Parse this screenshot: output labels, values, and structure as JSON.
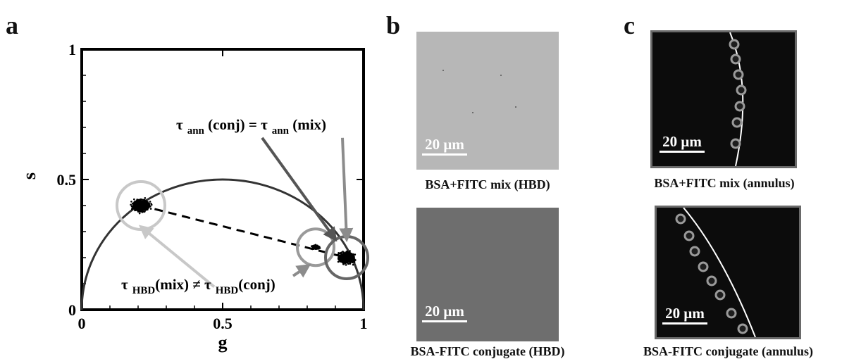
{
  "panels": {
    "a": "a",
    "b": "b",
    "c": "c"
  },
  "chart_data": {
    "type": "scatter",
    "xlabel": "g",
    "ylabel": "s",
    "xlim": [
      0,
      1
    ],
    "ylim": [
      0,
      1
    ],
    "x_ticks": [
      "0",
      "0.5",
      "1"
    ],
    "y_ticks": [
      "0",
      "0.5",
      "1"
    ],
    "semicircle": {
      "center_g": 0.5,
      "radius": 0.5
    },
    "clusters": [
      {
        "name": "HBD mix",
        "g": 0.21,
        "s": 0.4,
        "ring_color": "#c8c8c8"
      },
      {
        "name": "HBD conj",
        "g": 0.83,
        "s": 0.24,
        "ring_color": "#9a9a9a"
      },
      {
        "name": "annulus",
        "g": 0.94,
        "s": 0.2,
        "ring_color": "#666666"
      }
    ],
    "line": {
      "from": [
        0.21,
        0.4
      ],
      "to": [
        0.94,
        0.2
      ]
    },
    "annotations": {
      "top_prefix": "τ",
      "top_sub1": "ann",
      "top_mid": " (conj) = τ",
      "top_sub2": "ann",
      "top_suffix": " (mix)",
      "bottom_prefix": "τ",
      "bottom_sub1": "HBD",
      "bottom_mid": "(mix) ≠ τ",
      "bottom_sub2": "HBD",
      "bottom_suffix": "(conj)"
    }
  },
  "images": {
    "b_top": {
      "scalebar": "20 μm",
      "caption": "BSA+FITC mix (HBD)",
      "fill": "#b7b7b7"
    },
    "b_bottom": {
      "scalebar": "20 μm",
      "caption": "BSA-FITC conjugate (HBD)",
      "fill": "#6e6e6e"
    },
    "c_top": {
      "scalebar": "20 μm",
      "caption": "BSA+FITC mix (annulus)",
      "fill": "#0c0c0c"
    },
    "c_bottom": {
      "scalebar": "20 μm",
      "caption": "BSA-FITC conjugate (annulus)",
      "fill": "#0c0c0c"
    }
  }
}
